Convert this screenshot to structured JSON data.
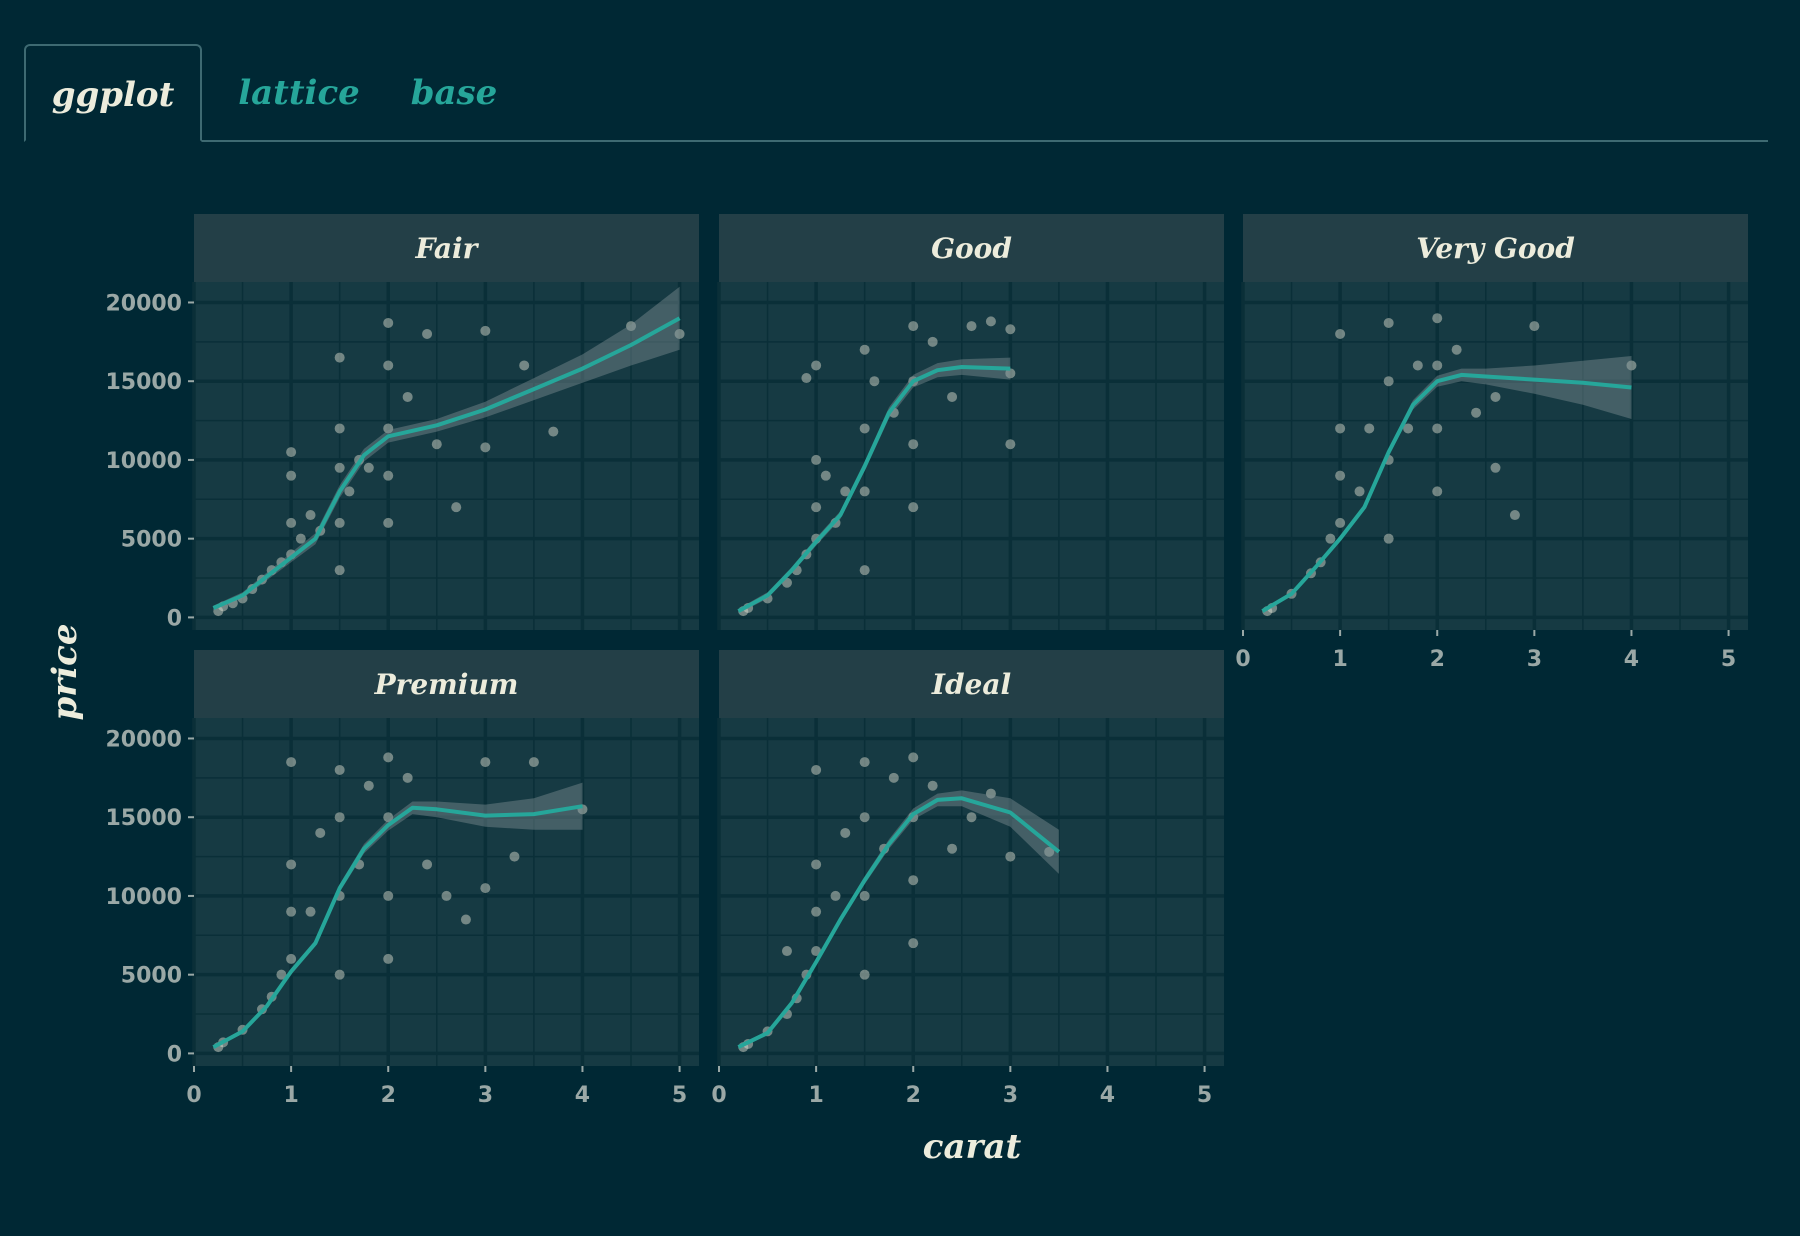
{
  "tabs": [
    {
      "label": "ggplot",
      "active": true
    },
    {
      "label": "lattice",
      "active": false
    },
    {
      "label": "base",
      "active": false
    }
  ],
  "colors": {
    "background": "#002834",
    "panel": "#163a43",
    "strip": "#233f47",
    "grid": "#0a2f38",
    "points": "#e6e6d6",
    "smooth": "#26a69a",
    "ribbon": "#7d8f92",
    "text": "#ececdc",
    "ticks": "#9aa8a6"
  },
  "chart_data": {
    "type": "scatter",
    "facet_by": "cut",
    "xlabel": "carat",
    "ylabel": "price",
    "xlim": [
      0,
      5.2
    ],
    "ylim": [
      -800,
      21300
    ],
    "x_ticks": [
      0,
      1,
      2,
      3,
      4,
      5
    ],
    "y_ticks": [
      0,
      5000,
      10000,
      15000,
      20000
    ],
    "grid": true,
    "smooth": true,
    "panels": [
      {
        "name": "Fair",
        "points": [
          [
            0.25,
            400
          ],
          [
            0.3,
            700
          ],
          [
            0.4,
            900
          ],
          [
            0.5,
            1200
          ],
          [
            0.6,
            1800
          ],
          [
            0.7,
            2400
          ],
          [
            0.8,
            3000
          ],
          [
            0.9,
            3500
          ],
          [
            1.0,
            4000
          ],
          [
            1.0,
            6000
          ],
          [
            1.0,
            9000
          ],
          [
            1.0,
            10500
          ],
          [
            1.1,
            5000
          ],
          [
            1.2,
            6500
          ],
          [
            1.3,
            5500
          ],
          [
            1.5,
            3000
          ],
          [
            1.5,
            6000
          ],
          [
            1.5,
            9500
          ],
          [
            1.5,
            12000
          ],
          [
            1.5,
            16500
          ],
          [
            1.6,
            8000
          ],
          [
            1.7,
            10000
          ],
          [
            1.8,
            9500
          ],
          [
            2.0,
            6000
          ],
          [
            2.0,
            9000
          ],
          [
            2.0,
            12000
          ],
          [
            2.0,
            16000
          ],
          [
            2.0,
            18700
          ],
          [
            2.2,
            14000
          ],
          [
            2.4,
            18000
          ],
          [
            2.5,
            11000
          ],
          [
            2.7,
            7000
          ],
          [
            3.0,
            10800
          ],
          [
            3.0,
            18200
          ],
          [
            3.4,
            16000
          ],
          [
            3.7,
            11800
          ],
          [
            4.5,
            18500
          ],
          [
            5.0,
            18000
          ]
        ],
        "smooth": [
          [
            0.2,
            600
          ],
          [
            0.5,
            1400
          ],
          [
            0.75,
            2600
          ],
          [
            1.0,
            3800
          ],
          [
            1.25,
            5000
          ],
          [
            1.5,
            8000
          ],
          [
            1.75,
            10300
          ],
          [
            2.0,
            11500
          ],
          [
            2.5,
            12200
          ],
          [
            3.0,
            13200
          ],
          [
            3.5,
            14500
          ],
          [
            4.0,
            15800
          ],
          [
            4.5,
            17300
          ],
          [
            5.0,
            19000
          ]
        ],
        "ribbon_halfwidth": [
          150,
          200,
          250,
          300,
          350,
          400,
          400,
          400,
          400,
          500,
          700,
          900,
          1300,
          2000
        ]
      },
      {
        "name": "Good",
        "points": [
          [
            0.25,
            400
          ],
          [
            0.3,
            600
          ],
          [
            0.5,
            1200
          ],
          [
            0.7,
            2200
          ],
          [
            0.8,
            3000
          ],
          [
            0.9,
            4000
          ],
          [
            1.0,
            5000
          ],
          [
            1.0,
            7000
          ],
          [
            1.0,
            10000
          ],
          [
            1.1,
            9000
          ],
          [
            1.2,
            6000
          ],
          [
            1.3,
            8000
          ],
          [
            1.5,
            3000
          ],
          [
            1.5,
            8000
          ],
          [
            1.5,
            12000
          ],
          [
            1.5,
            17000
          ],
          [
            1.6,
            15000
          ],
          [
            1.8,
            13000
          ],
          [
            2.0,
            7000
          ],
          [
            2.0,
            11000
          ],
          [
            2.0,
            15000
          ],
          [
            2.0,
            18500
          ],
          [
            2.2,
            17500
          ],
          [
            2.4,
            14000
          ],
          [
            2.6,
            18500
          ],
          [
            2.8,
            18800
          ],
          [
            3.0,
            11000
          ],
          [
            3.0,
            15500
          ],
          [
            3.0,
            18300
          ],
          [
            1.0,
            16000
          ],
          [
            0.9,
            15200
          ]
        ],
        "smooth": [
          [
            0.2,
            400
          ],
          [
            0.5,
            1400
          ],
          [
            0.75,
            3000
          ],
          [
            1.0,
            4800
          ],
          [
            1.25,
            6500
          ],
          [
            1.5,
            9600
          ],
          [
            1.75,
            13000
          ],
          [
            2.0,
            15000
          ],
          [
            2.25,
            15700
          ],
          [
            2.5,
            15900
          ],
          [
            3.0,
            15800
          ]
        ],
        "ribbon_halfwidth": [
          150,
          200,
          200,
          250,
          250,
          300,
          350,
          400,
          450,
          500,
          700
        ]
      },
      {
        "name": "Very Good",
        "points": [
          [
            0.25,
            400
          ],
          [
            0.3,
            600
          ],
          [
            0.5,
            1500
          ],
          [
            0.7,
            2800
          ],
          [
            0.8,
            3500
          ],
          [
            0.9,
            5000
          ],
          [
            1.0,
            6000
          ],
          [
            1.0,
            9000
          ],
          [
            1.0,
            12000
          ],
          [
            1.0,
            18000
          ],
          [
            1.2,
            8000
          ],
          [
            1.3,
            12000
          ],
          [
            1.5,
            5000
          ],
          [
            1.5,
            10000
          ],
          [
            1.5,
            15000
          ],
          [
            1.5,
            18700
          ],
          [
            1.7,
            12000
          ],
          [
            1.8,
            16000
          ],
          [
            2.0,
            8000
          ],
          [
            2.0,
            12000
          ],
          [
            2.0,
            16000
          ],
          [
            2.0,
            19000
          ],
          [
            2.2,
            17000
          ],
          [
            2.4,
            13000
          ],
          [
            2.6,
            14000
          ],
          [
            2.6,
            9500
          ],
          [
            2.8,
            6500
          ],
          [
            3.0,
            18500
          ],
          [
            4.0,
            16000
          ]
        ],
        "smooth": [
          [
            0.2,
            400
          ],
          [
            0.5,
            1500
          ],
          [
            0.75,
            3200
          ],
          [
            1.0,
            5000
          ],
          [
            1.25,
            7000
          ],
          [
            1.5,
            10500
          ],
          [
            1.75,
            13500
          ],
          [
            2.0,
            15000
          ],
          [
            2.25,
            15400
          ],
          [
            2.5,
            15300
          ],
          [
            3.0,
            15100
          ],
          [
            3.5,
            14900
          ],
          [
            4.0,
            14600
          ]
        ],
        "ribbon_halfwidth": [
          100,
          150,
          150,
          200,
          200,
          250,
          300,
          350,
          400,
          500,
          900,
          1400,
          2000
        ]
      },
      {
        "name": "Premium",
        "points": [
          [
            0.25,
            400
          ],
          [
            0.3,
            700
          ],
          [
            0.5,
            1500
          ],
          [
            0.7,
            2800
          ],
          [
            0.8,
            3600
          ],
          [
            0.9,
            5000
          ],
          [
            1.0,
            6000
          ],
          [
            1.0,
            9000
          ],
          [
            1.0,
            12000
          ],
          [
            1.0,
            18500
          ],
          [
            1.2,
            9000
          ],
          [
            1.3,
            14000
          ],
          [
            1.5,
            5000
          ],
          [
            1.5,
            10000
          ],
          [
            1.5,
            15000
          ],
          [
            1.5,
            18000
          ],
          [
            1.7,
            12000
          ],
          [
            1.8,
            17000
          ],
          [
            2.0,
            6000
          ],
          [
            2.0,
            10000
          ],
          [
            2.0,
            15000
          ],
          [
            2.0,
            18800
          ],
          [
            2.2,
            17500
          ],
          [
            2.4,
            12000
          ],
          [
            2.6,
            10000
          ],
          [
            2.8,
            8500
          ],
          [
            3.0,
            10500
          ],
          [
            3.0,
            18500
          ],
          [
            3.5,
            18500
          ],
          [
            4.0,
            15500
          ],
          [
            3.3,
            12500
          ]
        ],
        "smooth": [
          [
            0.2,
            400
          ],
          [
            0.5,
            1400
          ],
          [
            0.75,
            3000
          ],
          [
            1.0,
            5200
          ],
          [
            1.25,
            7000
          ],
          [
            1.5,
            10500
          ],
          [
            1.75,
            13000
          ],
          [
            2.0,
            14500
          ],
          [
            2.25,
            15600
          ],
          [
            2.5,
            15500
          ],
          [
            3.0,
            15100
          ],
          [
            3.5,
            15200
          ],
          [
            4.0,
            15700
          ]
        ],
        "ribbon_halfwidth": [
          100,
          150,
          150,
          200,
          200,
          250,
          300,
          350,
          400,
          500,
          700,
          1000,
          1500
        ]
      },
      {
        "name": "Ideal",
        "points": [
          [
            0.25,
            400
          ],
          [
            0.3,
            600
          ],
          [
            0.5,
            1400
          ],
          [
            0.7,
            2500
          ],
          [
            0.8,
            3500
          ],
          [
            0.9,
            5000
          ],
          [
            1.0,
            6500
          ],
          [
            1.0,
            9000
          ],
          [
            1.0,
            12000
          ],
          [
            1.0,
            18000
          ],
          [
            1.2,
            10000
          ],
          [
            1.3,
            14000
          ],
          [
            1.5,
            5000
          ],
          [
            1.5,
            10000
          ],
          [
            1.5,
            15000
          ],
          [
            1.5,
            18500
          ],
          [
            1.7,
            13000
          ],
          [
            1.8,
            17500
          ],
          [
            2.0,
            7000
          ],
          [
            2.0,
            11000
          ],
          [
            2.0,
            15000
          ],
          [
            2.0,
            18800
          ],
          [
            2.2,
            17000
          ],
          [
            2.4,
            13000
          ],
          [
            2.6,
            15000
          ],
          [
            2.8,
            16500
          ],
          [
            3.0,
            12500
          ],
          [
            3.4,
            12800
          ],
          [
            0.7,
            6500
          ]
        ],
        "smooth": [
          [
            0.2,
            400
          ],
          [
            0.5,
            1300
          ],
          [
            0.75,
            3200
          ],
          [
            1.0,
            5800
          ],
          [
            1.25,
            8500
          ],
          [
            1.5,
            11000
          ],
          [
            1.75,
            13300
          ],
          [
            2.0,
            15200
          ],
          [
            2.25,
            16100
          ],
          [
            2.5,
            16200
          ],
          [
            3.0,
            15300
          ],
          [
            3.5,
            12800
          ]
        ],
        "ribbon_halfwidth": [
          100,
          150,
          150,
          200,
          200,
          250,
          300,
          350,
          400,
          500,
          900,
          1400
        ]
      }
    ]
  }
}
